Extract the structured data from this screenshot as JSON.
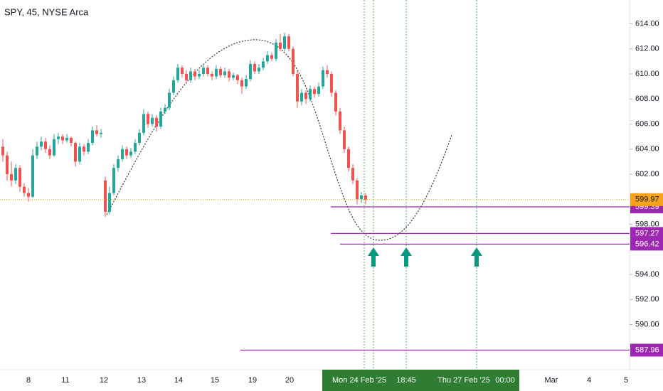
{
  "chart_data": {
    "type": "candlestick",
    "title": "SPY, 45, NYSE Arca",
    "up_color": "#26a69a",
    "down_color": "#ef5350",
    "ylim": [
      586.4,
      615.9
    ],
    "yticks": [
      {
        "value": 614,
        "label": "614.00"
      },
      {
        "value": 612,
        "label": "612.00"
      },
      {
        "value": 610,
        "label": "610.00"
      },
      {
        "value": 608,
        "label": "608.00"
      },
      {
        "value": 606,
        "label": "606.00"
      },
      {
        "value": 604,
        "label": "604.00"
      },
      {
        "value": 602,
        "label": "602.00"
      },
      {
        "value": 598,
        "label": "598.00"
      },
      {
        "value": 594,
        "label": "594.00"
      },
      {
        "value": 592,
        "label": "592.00"
      },
      {
        "value": 590,
        "label": "590.00"
      }
    ],
    "x_labels": [
      "8",
      "11",
      "12",
      "13",
      "14",
      "15",
      "19",
      "20",
      "Mar",
      "4",
      "5"
    ],
    "highlight_labels": [
      "Mon 24 Feb '25",
      "18:45",
      "Thu 27 Feb '25",
      "00:00"
    ],
    "current_price": 599.97,
    "current_color": "#f7a21b",
    "level_color": "#9c27b0",
    "levels": [
      599.39,
      597.27,
      596.42,
      587.96
    ],
    "candles": [
      [
        604.2,
        604.8,
        603.0,
        603.5
      ],
      [
        603.5,
        603.8,
        601.5,
        602.0
      ],
      [
        602.0,
        603.0,
        601.0,
        601.5
      ],
      [
        601.5,
        602.8,
        601.2,
        602.5
      ],
      [
        602.5,
        602.7,
        600.6,
        601.0
      ],
      [
        601.0,
        601.3,
        600.2,
        600.5
      ],
      [
        600.5,
        600.9,
        599.8,
        600.2
      ],
      [
        600.2,
        604.0,
        600.1,
        603.5
      ],
      [
        603.5,
        604.6,
        603.2,
        604.2
      ],
      [
        604.2,
        605.0,
        603.9,
        604.6
      ],
      [
        604.6,
        604.9,
        603.7,
        604.0
      ],
      [
        604.0,
        604.3,
        603.2,
        603.5
      ],
      [
        603.5,
        605.2,
        603.4,
        604.8
      ],
      [
        604.8,
        605.3,
        604.4,
        605.0
      ],
      [
        605.0,
        605.2,
        604.4,
        604.7
      ],
      [
        604.7,
        605.2,
        604.5,
        604.9
      ],
      [
        604.9,
        605.0,
        604.2,
        604.5
      ],
      [
        604.5,
        604.6,
        602.6,
        603.0
      ],
      [
        603.0,
        604.5,
        602.8,
        604.2
      ],
      [
        604.2,
        604.4,
        603.5,
        603.8
      ],
      [
        603.8,
        604.8,
        603.6,
        604.5
      ],
      [
        604.5,
        605.8,
        604.3,
        605.5
      ],
      [
        605.5,
        605.9,
        605.0,
        605.2
      ],
      [
        605.2,
        605.6,
        604.9,
        605.3
      ],
      [
        601.5,
        601.8,
        598.6,
        599.0
      ],
      [
        599.0,
        601.0,
        598.8,
        600.5
      ],
      [
        600.5,
        602.8,
        600.3,
        602.5
      ],
      [
        602.5,
        603.5,
        602.2,
        603.2
      ],
      [
        603.2,
        604.3,
        603.0,
        604.0
      ],
      [
        604.0,
        604.2,
        603.2,
        603.5
      ],
      [
        603.5,
        604.1,
        603.3,
        603.8
      ],
      [
        603.8,
        604.8,
        603.6,
        604.5
      ],
      [
        604.5,
        605.6,
        604.3,
        605.3
      ],
      [
        605.3,
        607.2,
        605.1,
        606.8
      ],
      [
        606.8,
        607.0,
        605.7,
        606.0
      ],
      [
        606.0,
        606.8,
        605.8,
        606.5
      ],
      [
        606.5,
        606.7,
        605.4,
        605.8
      ],
      [
        605.8,
        607.3,
        605.6,
        607.0
      ],
      [
        607.0,
        607.6,
        606.8,
        607.3
      ],
      [
        607.3,
        608.8,
        607.1,
        608.5
      ],
      [
        608.5,
        609.8,
        608.3,
        609.5
      ],
      [
        609.5,
        610.8,
        609.3,
        610.5
      ],
      [
        610.5,
        610.7,
        609.7,
        610.0
      ],
      [
        610.0,
        610.3,
        609.2,
        609.5
      ],
      [
        609.5,
        610.5,
        609.3,
        610.2
      ],
      [
        610.2,
        610.4,
        609.5,
        609.8
      ],
      [
        609.8,
        610.3,
        609.6,
        610.0
      ],
      [
        610.0,
        610.8,
        609.8,
        610.5
      ],
      [
        610.5,
        610.7,
        609.8,
        610.0
      ],
      [
        610.0,
        610.2,
        609.5,
        609.8
      ],
      [
        609.8,
        610.7,
        609.6,
        610.4
      ],
      [
        610.4,
        610.6,
        609.7,
        609.9
      ],
      [
        609.9,
        610.5,
        609.7,
        610.2
      ],
      [
        610.2,
        610.4,
        609.4,
        609.7
      ],
      [
        609.7,
        610.1,
        609.5,
        609.9
      ],
      [
        609.9,
        610.0,
        609.2,
        609.5
      ],
      [
        609.5,
        609.7,
        608.4,
        609.0
      ],
      [
        609.0,
        609.9,
        608.8,
        609.6
      ],
      [
        609.6,
        611.1,
        609.4,
        610.8
      ],
      [
        610.8,
        611.0,
        610.0,
        610.2
      ],
      [
        610.2,
        610.8,
        610.0,
        610.5
      ],
      [
        610.5,
        611.3,
        610.3,
        611.0
      ],
      [
        611.0,
        611.8,
        610.8,
        611.5
      ],
      [
        611.5,
        611.7,
        611.0,
        611.2
      ],
      [
        611.2,
        612.8,
        611.0,
        612.5
      ],
      [
        612.5,
        613.2,
        611.8,
        612.0
      ],
      [
        612.0,
        613.3,
        611.8,
        613.0
      ],
      [
        613.0,
        613.2,
        611.8,
        612.0
      ],
      [
        612.0,
        612.2,
        609.8,
        610.0
      ],
      [
        610.0,
        610.3,
        607.3,
        607.8
      ],
      [
        607.8,
        608.8,
        607.5,
        608.5
      ],
      [
        608.5,
        608.7,
        607.6,
        608.0
      ],
      [
        608.0,
        609.1,
        607.8,
        608.8
      ],
      [
        608.8,
        609.0,
        608.1,
        608.4
      ],
      [
        608.4,
        609.3,
        608.2,
        609.0
      ],
      [
        609.0,
        610.6,
        608.8,
        610.3
      ],
      [
        610.3,
        610.7,
        609.7,
        610.0
      ],
      [
        610.0,
        610.2,
        608.2,
        608.5
      ],
      [
        608.5,
        608.7,
        606.7,
        607.0
      ],
      [
        607.0,
        607.3,
        605.2,
        605.5
      ],
      [
        605.5,
        605.8,
        603.7,
        604.0
      ],
      [
        604.0,
        604.2,
        602.2,
        602.5
      ],
      [
        602.5,
        602.8,
        601.2,
        601.5
      ],
      [
        601.5,
        601.7,
        599.6,
        600.0
      ],
      [
        600.0,
        600.6,
        599.7,
        600.3
      ],
      [
        600.3,
        600.5,
        599.6,
        599.97
      ]
    ]
  }
}
